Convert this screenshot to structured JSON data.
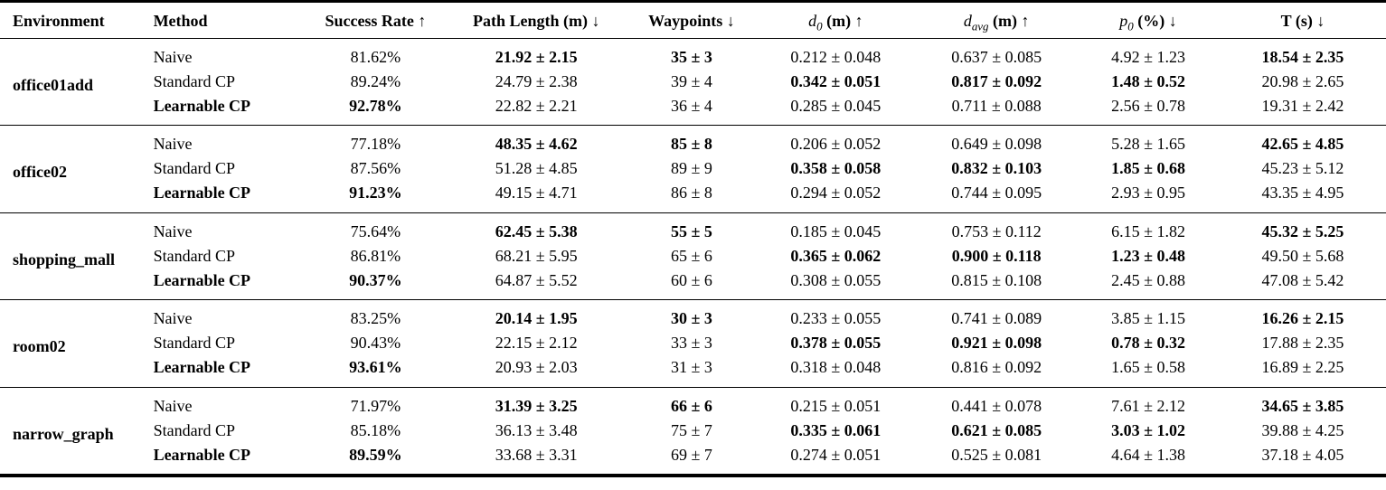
{
  "table": {
    "columns": [
      {
        "key": "environment",
        "label": "Environment",
        "align": "left"
      },
      {
        "key": "method",
        "label": "Method",
        "align": "left"
      },
      {
        "key": "success-rate",
        "label": "Success Rate",
        "arrow": "↑"
      },
      {
        "key": "path-length",
        "label": "Path Length (m)",
        "arrow": "↓"
      },
      {
        "key": "waypoints",
        "label": "Waypoints",
        "arrow": "↓"
      },
      {
        "key": "d0",
        "var": "d",
        "sub": "0",
        "suffix": "(m)",
        "arrow": "↑"
      },
      {
        "key": "davg",
        "var": "d",
        "sub": "avg",
        "suffix": "(m)",
        "arrow": "↑"
      },
      {
        "key": "p0",
        "var": "p",
        "sub": "0",
        "suffix": "(%)",
        "arrow": "↓"
      },
      {
        "key": "time",
        "label": "T (s)",
        "arrow": "↓"
      }
    ],
    "groups": [
      {
        "environment": "office01add",
        "rows": [
          {
            "method": "Naive",
            "bold_method": false,
            "cells": [
              "81.62%",
              "21.92 ± 2.15",
              "35 ± 3",
              "0.212 ± 0.048",
              "0.637 ± 0.085",
              "4.92 ± 1.23",
              "18.54 ± 2.35"
            ],
            "bold": [
              false,
              true,
              true,
              false,
              false,
              false,
              true
            ]
          },
          {
            "method": "Standard CP",
            "bold_method": false,
            "cells": [
              "89.24%",
              "24.79 ± 2.38",
              "39 ± 4",
              "0.342 ± 0.051",
              "0.817 ± 0.092",
              "1.48 ± 0.52",
              "20.98 ± 2.65"
            ],
            "bold": [
              false,
              false,
              false,
              true,
              true,
              true,
              false
            ]
          },
          {
            "method": "Learnable CP",
            "bold_method": true,
            "cells": [
              "92.78%",
              "22.82 ± 2.21",
              "36 ± 4",
              "0.285 ± 0.045",
              "0.711 ± 0.088",
              "2.56 ± 0.78",
              "19.31 ± 2.42"
            ],
            "bold": [
              true,
              false,
              false,
              false,
              false,
              false,
              false
            ]
          }
        ]
      },
      {
        "environment": "office02",
        "rows": [
          {
            "method": "Naive",
            "bold_method": false,
            "cells": [
              "77.18%",
              "48.35 ± 4.62",
              "85 ± 8",
              "0.206 ± 0.052",
              "0.649 ± 0.098",
              "5.28 ± 1.65",
              "42.65 ± 4.85"
            ],
            "bold": [
              false,
              true,
              true,
              false,
              false,
              false,
              true
            ]
          },
          {
            "method": "Standard CP",
            "bold_method": false,
            "cells": [
              "87.56%",
              "51.28 ± 4.85",
              "89 ± 9",
              "0.358 ± 0.058",
              "0.832 ± 0.103",
              "1.85 ± 0.68",
              "45.23 ± 5.12"
            ],
            "bold": [
              false,
              false,
              false,
              true,
              true,
              true,
              false
            ]
          },
          {
            "method": "Learnable CP",
            "bold_method": true,
            "cells": [
              "91.23%",
              "49.15 ± 4.71",
              "86 ± 8",
              "0.294 ± 0.052",
              "0.744 ± 0.095",
              "2.93 ± 0.95",
              "43.35 ± 4.95"
            ],
            "bold": [
              true,
              false,
              false,
              false,
              false,
              false,
              false
            ]
          }
        ]
      },
      {
        "environment": "shopping_mall",
        "rows": [
          {
            "method": "Naive",
            "bold_method": false,
            "cells": [
              "75.64%",
              "62.45 ± 5.38",
              "55 ± 5",
              "0.185 ± 0.045",
              "0.753 ± 0.112",
              "6.15 ± 1.82",
              "45.32 ± 5.25"
            ],
            "bold": [
              false,
              true,
              true,
              false,
              false,
              false,
              true
            ]
          },
          {
            "method": "Standard CP",
            "bold_method": false,
            "cells": [
              "86.81%",
              "68.21 ± 5.95",
              "65 ± 6",
              "0.365 ± 0.062",
              "0.900 ± 0.118",
              "1.23 ± 0.48",
              "49.50 ± 5.68"
            ],
            "bold": [
              false,
              false,
              false,
              true,
              true,
              true,
              false
            ]
          },
          {
            "method": "Learnable CP",
            "bold_method": true,
            "cells": [
              "90.37%",
              "64.87 ± 5.52",
              "60 ± 6",
              "0.308 ± 0.055",
              "0.815 ± 0.108",
              "2.45 ± 0.88",
              "47.08 ± 5.42"
            ],
            "bold": [
              true,
              false,
              false,
              false,
              false,
              false,
              false
            ]
          }
        ]
      },
      {
        "environment": "room02",
        "rows": [
          {
            "method": "Naive",
            "bold_method": false,
            "cells": [
              "83.25%",
              "20.14 ± 1.95",
              "30 ± 3",
              "0.233 ± 0.055",
              "0.741 ± 0.089",
              "3.85 ± 1.15",
              "16.26 ± 2.15"
            ],
            "bold": [
              false,
              true,
              true,
              false,
              false,
              false,
              true
            ]
          },
          {
            "method": "Standard CP",
            "bold_method": false,
            "cells": [
              "90.43%",
              "22.15 ± 2.12",
              "33 ± 3",
              "0.378 ± 0.055",
              "0.921 ± 0.098",
              "0.78 ± 0.32",
              "17.88 ± 2.35"
            ],
            "bold": [
              false,
              false,
              false,
              true,
              true,
              true,
              false
            ]
          },
          {
            "method": "Learnable CP",
            "bold_method": true,
            "cells": [
              "93.61%",
              "20.93 ± 2.03",
              "31 ± 3",
              "0.318 ± 0.048",
              "0.816 ± 0.092",
              "1.65 ± 0.58",
              "16.89 ± 2.25"
            ],
            "bold": [
              true,
              false,
              false,
              false,
              false,
              false,
              false
            ]
          }
        ]
      },
      {
        "environment": "narrow_graph",
        "rows": [
          {
            "method": "Naive",
            "bold_method": false,
            "cells": [
              "71.97%",
              "31.39 ± 3.25",
              "66 ± 6",
              "0.215 ± 0.051",
              "0.441 ± 0.078",
              "7.61 ± 2.12",
              "34.65 ± 3.85"
            ],
            "bold": [
              false,
              true,
              true,
              false,
              false,
              false,
              true
            ]
          },
          {
            "method": "Standard CP",
            "bold_method": false,
            "cells": [
              "85.18%",
              "36.13 ± 3.48",
              "75 ± 7",
              "0.335 ± 0.061",
              "0.621 ± 0.085",
              "3.03 ± 1.02",
              "39.88 ± 4.25"
            ],
            "bold": [
              false,
              false,
              false,
              true,
              true,
              true,
              false
            ]
          },
          {
            "method": "Learnable CP",
            "bold_method": true,
            "cells": [
              "89.59%",
              "33.68 ± 3.31",
              "69 ± 7",
              "0.274 ± 0.051",
              "0.525 ± 0.081",
              "4.64 ± 1.38",
              "37.18 ± 4.05"
            ],
            "bold": [
              true,
              false,
              false,
              false,
              false,
              false,
              false
            ]
          }
        ]
      }
    ]
  }
}
